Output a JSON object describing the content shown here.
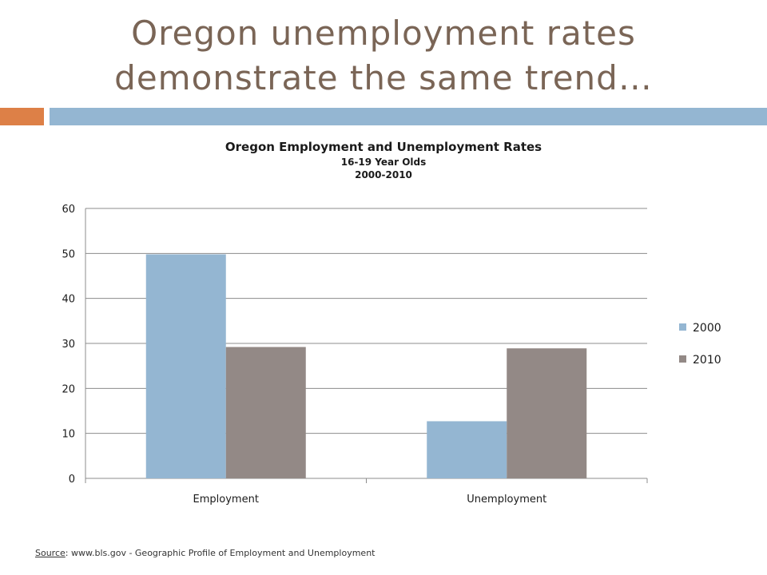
{
  "slide": {
    "title_line1": "Oregon unemployment rates",
    "title_line2": "demonstrate the same trend…",
    "accent_color": "#dd8047",
    "bar_color": "#94b6d2",
    "title_color": "#7a6556"
  },
  "chart_data": {
    "type": "bar",
    "title": "Oregon Employment and Unemployment Rates",
    "subtitle_lines": [
      "16-19 Year Olds",
      "2000-2010"
    ],
    "categories": [
      "Employment",
      "Unemployment"
    ],
    "series": [
      {
        "name": "2000",
        "values": [
          49.8,
          12.7
        ],
        "color": "#94b6d2"
      },
      {
        "name": "2010",
        "values": [
          29.2,
          28.9
        ],
        "color": "#938986"
      }
    ],
    "ylim": [
      0,
      60
    ],
    "yticks": [
      0,
      10,
      20,
      30,
      40,
      50,
      60
    ],
    "grid": true,
    "legend": "right"
  },
  "source": {
    "label": "Source",
    "text": ": www.bls.gov -  Geographic Profile of Employment and Unemployment"
  }
}
